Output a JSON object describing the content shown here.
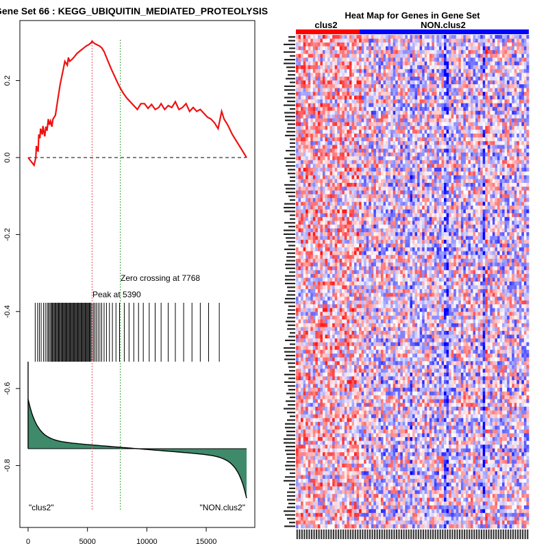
{
  "chart_data": [
    {
      "type": "line",
      "title": "Gene Set  66 : KEGG_UBIQUITIN_MEDIATED_PROTEOLYSIS",
      "xlim": [
        0,
        18400
      ],
      "ylim": [
        -0.92,
        0.31
      ],
      "x_ticks": [
        0,
        5000,
        10000,
        15000
      ],
      "y_ticks": [
        0.2,
        0.0,
        -0.2,
        -0.4,
        -0.6,
        -0.8
      ],
      "y_tick_labels": [
        "0.2",
        "0.0",
        "-0.2",
        "-0.4",
        "-0.6",
        "-0.8"
      ],
      "x_tick_labels": [
        "0",
        "5000",
        "10000",
        "15000"
      ],
      "running_es": {
        "x": [
          0,
          300,
          500,
          650,
          700,
          850,
          900,
          1000,
          1050,
          1200,
          1250,
          1400,
          1500,
          1600,
          1700,
          1800,
          1900,
          2000,
          2100,
          2300,
          2500,
          2700,
          2900,
          3100,
          3300,
          3400,
          3500,
          3700,
          3900,
          4100,
          4300,
          4500,
          4700,
          4900,
          5100,
          5300,
          5390,
          5600,
          5800,
          6000,
          6200,
          6400,
          6600,
          6800,
          7000,
          7300,
          7600,
          7768,
          8000,
          8300,
          8600,
          8900,
          9200,
          9500,
          9800,
          10100,
          10400,
          10700,
          11000,
          11200,
          11500,
          11800,
          12100,
          12400,
          12700,
          13000,
          13300,
          13600,
          13900,
          14200,
          14500,
          14800,
          15100,
          15400,
          15700,
          16000,
          16300,
          16500,
          16800,
          17200,
          17600,
          18000,
          18400
        ],
        "y": [
          0.0,
          -0.012,
          -0.02,
          0.0,
          0.03,
          0.015,
          0.06,
          0.05,
          0.075,
          0.06,
          0.082,
          0.055,
          0.08,
          0.07,
          0.1,
          0.085,
          0.095,
          0.08,
          0.1,
          0.11,
          0.15,
          0.19,
          0.22,
          0.25,
          0.24,
          0.26,
          0.25,
          0.255,
          0.262,
          0.27,
          0.275,
          0.28,
          0.285,
          0.29,
          0.293,
          0.298,
          0.302,
          0.296,
          0.293,
          0.29,
          0.285,
          0.275,
          0.26,
          0.245,
          0.23,
          0.21,
          0.19,
          0.18,
          0.168,
          0.155,
          0.145,
          0.135,
          0.125,
          0.14,
          0.14,
          0.128,
          0.138,
          0.125,
          0.13,
          0.14,
          0.125,
          0.135,
          0.13,
          0.145,
          0.125,
          0.13,
          0.14,
          0.12,
          0.13,
          0.12,
          0.125,
          0.115,
          0.105,
          0.1,
          0.09,
          0.075,
          0.12,
          0.1,
          0.085,
          0.06,
          0.04,
          0.02,
          0.0
        ]
      },
      "peak_position": 5390,
      "zero_crossing": 7768,
      "annotations": {
        "zero_crossing_label": "Zero crossing at 7768",
        "peak_label": "Peak at 5390",
        "left_label": "\"clus2\"",
        "right_label": "\"NON.clus2\""
      },
      "hit_positions": [
        600,
        800,
        950,
        1100,
        1300,
        1450,
        1600,
        1700,
        1800,
        1900,
        1980,
        2050,
        2130,
        2200,
        2280,
        2350,
        2420,
        2500,
        2570,
        2640,
        2700,
        2780,
        2850,
        2920,
        2990,
        3060,
        3130,
        3200,
        3270,
        3340,
        3410,
        3480,
        3550,
        3620,
        3690,
        3760,
        3830,
        3900,
        3970,
        4040,
        4110,
        4180,
        4250,
        4320,
        4390,
        4460,
        4530,
        4600,
        4670,
        4740,
        4810,
        4880,
        4950,
        5020,
        5090,
        5160,
        5230,
        5300,
        5390,
        5500,
        5620,
        5750,
        5900,
        6050,
        6200,
        6400,
        6600,
        6850,
        7100,
        7400,
        7700,
        8100,
        8500,
        8900,
        9300,
        9700,
        10200,
        10700,
        11200,
        11800,
        12400,
        13100,
        13800,
        14500,
        15200,
        16100
      ]
    },
    {
      "type": "heatmap",
      "title": "Heat Map for Genes in Gene Set",
      "column_groups": [
        {
          "name": "clus2",
          "color": "#ff0000"
        },
        {
          "name": "NON.clus2",
          "color": "#0000ff"
        }
      ],
      "colors": {
        "high": "#ff0000",
        "low": "#0000ff",
        "mid": "#ffffff"
      }
    }
  ]
}
